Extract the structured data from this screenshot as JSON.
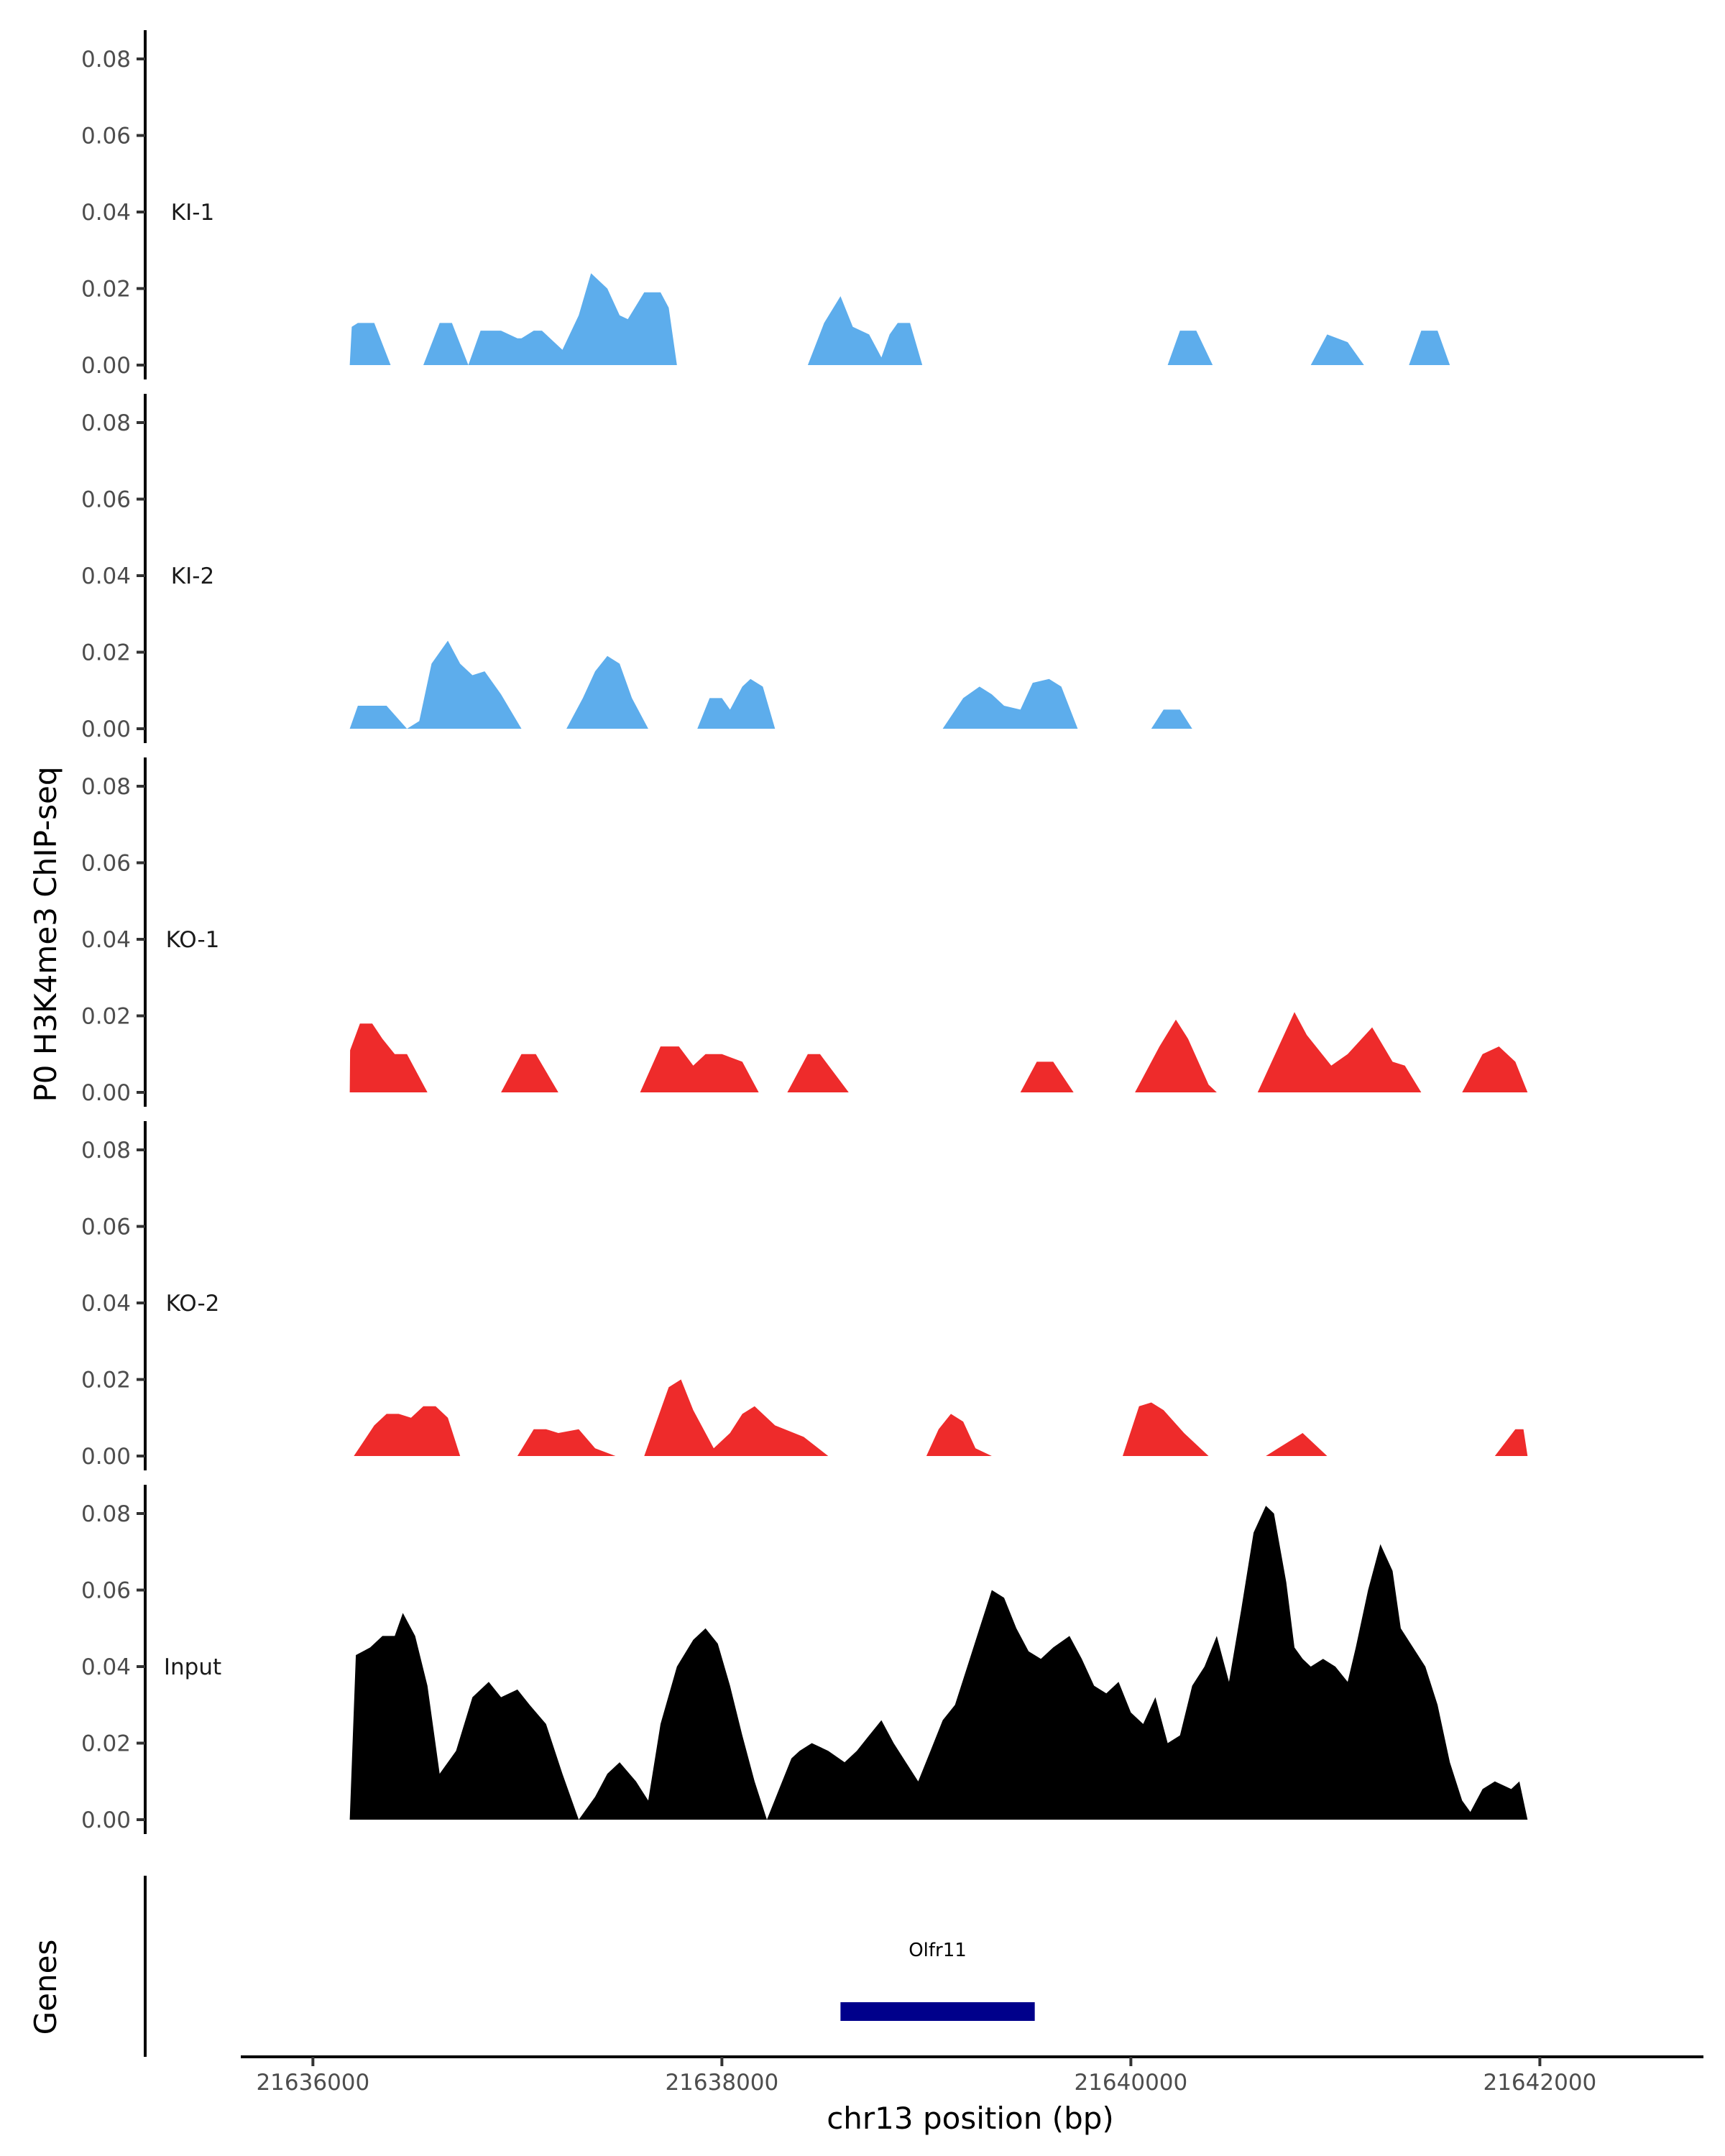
{
  "chart_data": {
    "type": "area",
    "ylabel": "P0 H3K4me3 ChIP-seq",
    "xlabel": "chr13 position (bp)",
    "genes_label": "Genes",
    "xlim": [
      21635700,
      21642800
    ],
    "ylim": [
      0,
      0.085
    ],
    "y_ticks": [
      0.0,
      0.02,
      0.04,
      0.06,
      0.08
    ],
    "y_tick_labels": [
      "0.00",
      "0.02",
      "0.04",
      "0.06",
      "0.08"
    ],
    "x_ticks": [
      21636000,
      21638000,
      21640000,
      21642000
    ],
    "x_tick_labels": [
      "21636000",
      "21638000",
      "21640000",
      "21642000"
    ],
    "tracks": [
      {
        "name": "KI-1",
        "color": "#5DADEC",
        "x": [
          21636180,
          21636190,
          21636220,
          21636300,
          21636380,
          21636540,
          21636620,
          21636680,
          21636760,
          21636820,
          21636920,
          21637000,
          21637020,
          21637080,
          21637120,
          21637220,
          21637300,
          21637360,
          21637440,
          21637500,
          21637540,
          21637620,
          21637700,
          21637740,
          21637780,
          21637840,
          21637900,
          21637960,
          21638420,
          21638500,
          21638580,
          21638640,
          21638720,
          21638780,
          21638820,
          21638860,
          21638920,
          21638980,
          21639040,
          21639140,
          21640180,
          21640240,
          21640320,
          21640400,
          21640460,
          21640880,
          21640960,
          21641060,
          21641140,
          21641180,
          21641360,
          21641420,
          21641500,
          21641560,
          21641640
        ],
        "y": [
          0,
          0.01,
          0.011,
          0.011,
          0,
          0,
          0.011,
          0.011,
          0,
          0.009,
          0.009,
          0.007,
          0.007,
          0.009,
          0.009,
          0.004,
          0.013,
          0.024,
          0.02,
          0.013,
          0.012,
          0.019,
          0.019,
          0.015,
          0,
          0,
          0,
          0,
          0,
          0.011,
          0.018,
          0.01,
          0.008,
          0.002,
          0.008,
          0.011,
          0.011,
          0,
          0,
          0,
          0,
          0.009,
          0.009,
          0,
          0,
          0,
          0.008,
          0.006,
          0,
          0,
          0,
          0.009,
          0.009,
          0,
          0
        ]
      },
      {
        "name": "KI-2",
        "color": "#5DADEC",
        "x": [
          21636180,
          21636220,
          21636280,
          21636360,
          21636460,
          21636520,
          21636580,
          21636620,
          21636660,
          21636720,
          21636780,
          21636840,
          21636920,
          21637020,
          21637240,
          21637320,
          21637380,
          21637440,
          21637500,
          21637560,
          21637640,
          21637720,
          21637800,
          21637880,
          21637940,
          21638000,
          21638040,
          21638100,
          21638140,
          21638200,
          21638260,
          21638320,
          21638420,
          21638500,
          21639080,
          21639180,
          21639260,
          21639320,
          21639380,
          21639460,
          21639520,
          21639600,
          21639660,
          21639740,
          21639800,
          21639860,
          21640100,
          21640160,
          21640240,
          21640300,
          21640380
        ],
        "y": [
          0,
          0.006,
          0.006,
          0.006,
          0,
          0.002,
          0.017,
          0.02,
          0.023,
          0.017,
          0.014,
          0.015,
          0.009,
          0,
          0,
          0.008,
          0.015,
          0.019,
          0.017,
          0.008,
          0,
          0,
          0,
          0,
          0.008,
          0.008,
          0.005,
          0.011,
          0.013,
          0.011,
          0,
          0,
          0,
          0,
          0,
          0.008,
          0.011,
          0.009,
          0.006,
          0.005,
          0.012,
          0.013,
          0.011,
          0,
          0,
          0,
          0,
          0.005,
          0.005,
          0,
          0
        ],
        "gaps": [
          [
            21637020,
            21637240
          ],
          [
            21638320,
            21639080
          ]
        ]
      },
      {
        "name": "KO-1",
        "color": "#EE2B2B",
        "x": [
          21636180,
          21636182,
          21636230,
          21636290,
          21636340,
          21636400,
          21636460,
          21636560,
          21636920,
          21637020,
          21637090,
          21637200,
          21637600,
          21637700,
          21637790,
          21637860,
          21637920,
          21638000,
          21638100,
          21638180,
          21638320,
          21638420,
          21638480,
          21638620,
          21639460,
          21639540,
          21639620,
          21639720,
          21640020,
          21640140,
          21640220,
          21640280,
          21640380,
          21640420,
          21640620,
          21640800,
          21640860,
          21640980,
          21641060,
          21641180,
          21641280,
          21641340,
          21641420,
          21641620,
          21641720,
          21641800,
          21641880,
          21641940
        ],
        "y": [
          0,
          0.011,
          0.018,
          0.018,
          0.014,
          0.01,
          0.01,
          0,
          0,
          0.01,
          0.01,
          0,
          0,
          0.012,
          0.012,
          0.007,
          0.01,
          0.01,
          0.008,
          0,
          0,
          0.01,
          0.01,
          0,
          0,
          0.008,
          0.008,
          0,
          0,
          0.012,
          0.019,
          0.014,
          0.002,
          0,
          0,
          0.021,
          0.015,
          0.007,
          0.01,
          0.017,
          0.008,
          0.007,
          0,
          0,
          0.01,
          0.012,
          0.008,
          0
        ],
        "gaps": [
          [
            21636560,
            21636920
          ],
          [
            21637200,
            21637600
          ],
          [
            21638180,
            21638320
          ],
          [
            21638620,
            21639460
          ],
          [
            21639720,
            21640020
          ],
          [
            21640420,
            21640620
          ],
          [
            21641420,
            21641620
          ]
        ]
      },
      {
        "name": "KO-2",
        "color": "#EE2B2B",
        "x": [
          21636180,
          21636200,
          21636300,
          21636360,
          21636420,
          21636480,
          21636540,
          21636600,
          21636660,
          21636720,
          21636760,
          21637000,
          21637080,
          21637140,
          21637200,
          21637300,
          21637380,
          21637480,
          21637620,
          21637740,
          21637800,
          21637860,
          21637960,
          21638040,
          21638100,
          21638160,
          21638260,
          21638400,
          21638520,
          21639000,
          21639060,
          21639120,
          21639180,
          21639240,
          21639320,
          21639960,
          21640040,
          21640100,
          21640160,
          21640260,
          21640380,
          21640480,
          21640660,
          21640720,
          21640840,
          21640960,
          21641780,
          21641880,
          21641920,
          21641940
        ],
        "y": [
          0,
          0,
          0.008,
          0.011,
          0.011,
          0.01,
          0.013,
          0.013,
          0.01,
          0,
          0,
          0,
          0.007,
          0.007,
          0.006,
          0.007,
          0.002,
          0,
          0,
          0.018,
          0.02,
          0.012,
          0.002,
          0.006,
          0.011,
          0.013,
          0.008,
          0.005,
          0,
          0,
          0.007,
          0.011,
          0.009,
          0.002,
          0,
          0,
          0.013,
          0.014,
          0.012,
          0.006,
          0,
          0,
          0,
          0.002,
          0.006,
          0,
          0,
          0.007,
          0.007,
          0
        ],
        "gaps": [
          [
            21636760,
            21637000
          ],
          [
            21637480,
            21637620
          ],
          [
            21638520,
            21639000
          ],
          [
            21639320,
            21639960
          ],
          [
            21640480,
            21640660
          ],
          [
            21640960,
            21641780
          ]
        ]
      },
      {
        "name": "Input",
        "color": "#000000",
        "x": [
          21636180,
          21636210,
          21636280,
          21636340,
          21636400,
          21636440,
          21636500,
          21636560,
          21636620,
          21636700,
          21636780,
          21636860,
          21636920,
          21637000,
          21637060,
          21637140,
          21637220,
          21637300,
          21637380,
          21637440,
          21637500,
          21637580,
          21637640,
          21637700,
          21637780,
          21637860,
          21637920,
          21637980,
          21638040,
          21638100,
          21638160,
          21638220,
          21638280,
          21638340,
          21638380,
          21638440,
          21638520,
          21638600,
          21638660,
          21638720,
          21638780,
          21638840,
          21638900,
          21638960,
          21639020,
          21639080,
          21639140,
          21639200,
          21639260,
          21639320,
          21639380,
          21639440,
          21639500,
          21639560,
          21639620,
          21639700,
          21639760,
          21639820,
          21639880,
          21639940,
          21640000,
          21640060,
          21640120,
          21640180,
          21640240,
          21640300,
          21640360,
          21640420,
          21640480,
          21640540,
          21640600,
          21640660,
          21640700,
          21640760,
          21640800,
          21640840,
          21640880,
          21640940,
          21641000,
          21641060,
          21641100,
          21641160,
          21641220,
          21641280,
          21641320,
          21641380,
          21641440,
          21641500,
          21641560,
          21641620,
          21641660,
          21641720,
          21641780,
          21641860,
          21641900,
          21641940
        ],
        "y": [
          0,
          0.043,
          0.045,
          0.048,
          0.048,
          0.054,
          0.048,
          0.035,
          0.012,
          0.018,
          0.032,
          0.036,
          0.032,
          0.034,
          0.03,
          0.025,
          0.012,
          0,
          0.006,
          0.012,
          0.015,
          0.01,
          0.005,
          0.025,
          0.04,
          0.047,
          0.05,
          0.046,
          0.035,
          0.022,
          0.01,
          0,
          0.008,
          0.016,
          0.018,
          0.02,
          0.018,
          0.015,
          0.018,
          0.022,
          0.026,
          0.02,
          0.015,
          0.01,
          0.018,
          0.026,
          0.03,
          0.04,
          0.05,
          0.06,
          0.058,
          0.05,
          0.044,
          0.042,
          0.045,
          0.048,
          0.042,
          0.035,
          0.033,
          0.036,
          0.028,
          0.025,
          0.032,
          0.02,
          0.022,
          0.035,
          0.04,
          0.048,
          0.036,
          0.055,
          0.075,
          0.082,
          0.08,
          0.062,
          0.045,
          0.042,
          0.04,
          0.042,
          0.04,
          0.036,
          0.045,
          0.06,
          0.072,
          0.065,
          0.05,
          0.045,
          0.04,
          0.03,
          0.015,
          0.005,
          0.002,
          0.008,
          0.01,
          0.008,
          0.01,
          0
        ]
      }
    ],
    "gene": {
      "name": "Olfr11",
      "start": 21638580,
      "end": 21639530,
      "color": "#00008B"
    }
  }
}
